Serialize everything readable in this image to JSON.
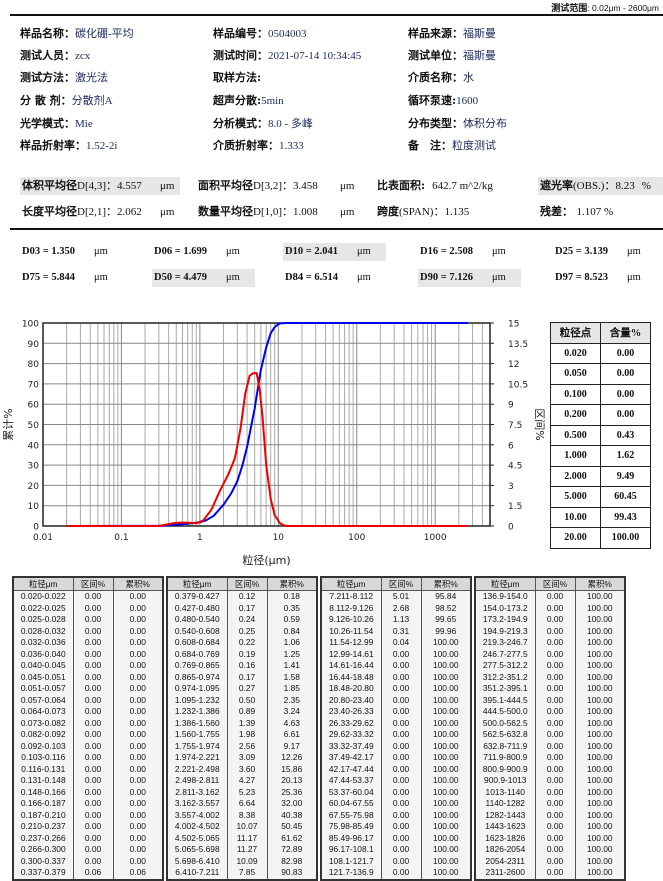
{
  "header": {
    "range_label": "测试范围",
    "range_value": ": 0.02μm - 2600μm"
  },
  "info": [
    {
      "key": "样品名称：",
      "value": "碳化硼-平均"
    },
    {
      "key": "样品编号：",
      "value": "0504003"
    },
    {
      "key": "样品来源：",
      "value": "福斯曼"
    },
    {
      "key": "测试人员：",
      "value": "zcx"
    },
    {
      "key": "测试时间：",
      "value": "2021-07-14  10:34:45"
    },
    {
      "key": "测试单位：",
      "value": "福斯曼"
    },
    {
      "key": "测试方法：",
      "value": "激光法"
    },
    {
      "key": "取样方法:",
      "value": ""
    },
    {
      "key": "介质名称：",
      "value": "水"
    },
    {
      "key": "分 散 剂：",
      "value": "分散剂A"
    },
    {
      "key": "超声分散:",
      "value": "5min"
    },
    {
      "key": "循环泵速:",
      "value": "1600"
    },
    {
      "key": "光学模式：",
      "value": "Mie"
    },
    {
      "key": "分析模式：",
      "value": "8.0 - 多峰"
    },
    {
      "key": "分布类型：",
      "value": "体积分布"
    },
    {
      "key": "样品折射率：",
      "value": "1.52-2i"
    },
    {
      "key": "介质折射率：",
      "value": "1.333"
    },
    {
      "key": "备　注：",
      "value": "粒度测试"
    }
  ],
  "stats": {
    "d43": {
      "key": "体积平均径",
      "sub": "D[4,3]：",
      "value": "4.557",
      "unit": "μm"
    },
    "d32": {
      "key": "面积平均径",
      "sub": "D[3,2]：",
      "value": "3.458",
      "unit": "μm"
    },
    "ssa": {
      "key": "比表面积:",
      "value": "642.7 m^2/kg"
    },
    "obs": {
      "key": "遮光率",
      "sub": "(OBS.)：",
      "value": "8.23",
      "unit": "%"
    },
    "d21": {
      "key": "长度平均径",
      "sub": "D[2,1]：",
      "value": "2.062",
      "unit": "μm"
    },
    "d10m": {
      "key": "数量平均径",
      "sub": "D[1,0]：",
      "value": "1.008",
      "unit": "μm"
    },
    "span": {
      "key": "跨度",
      "sub": "(SPAN)：",
      "value": "1.135"
    },
    "residual": {
      "key": "残差：",
      "value": "1.107 %"
    }
  },
  "dvalues": [
    {
      "label": "D03 = 1.350",
      "unit": "μm",
      "hl": false
    },
    {
      "label": "D06 = 1.699",
      "unit": "μm",
      "hl": false
    },
    {
      "label": "D10 = 2.041",
      "unit": "μm",
      "hl": true
    },
    {
      "label": "D16 = 2.508",
      "unit": "μm",
      "hl": false
    },
    {
      "label": "D25 = 3.139",
      "unit": "μm",
      "hl": false
    },
    {
      "label": "D75 = 5.844",
      "unit": "μm",
      "hl": false
    },
    {
      "label": "D50 = 4.479",
      "unit": "μm",
      "hl": true
    },
    {
      "label": "D84 = 6.514",
      "unit": "μm",
      "hl": false
    },
    {
      "label": "D90 = 7.126",
      "unit": "μm",
      "hl": true
    },
    {
      "label": "D97 = 8.523",
      "unit": "μm",
      "hl": false
    }
  ],
  "point_table": {
    "headers": [
      "粒径点",
      "含量%"
    ],
    "rows": [
      [
        "0.020",
        "0.00"
      ],
      [
        "0.050",
        "0.00"
      ],
      [
        "0.100",
        "0.00"
      ],
      [
        "0.200",
        "0.00"
      ],
      [
        "0.500",
        "0.43"
      ],
      [
        "1.000",
        "1.62"
      ],
      [
        "2.000",
        "9.49"
      ],
      [
        "5.000",
        "60.45"
      ],
      [
        "10.00",
        "99.43"
      ],
      [
        "20.00",
        "100.00"
      ]
    ]
  },
  "chart_data": {
    "type": "line",
    "xlabel": "粒径(μm)",
    "ylabel": "累计%",
    "y2label": "区间%",
    "xscale": "log",
    "xlim": [
      0.01,
      5000
    ],
    "ylim": [
      0,
      100
    ],
    "y2lim": [
      0,
      15
    ],
    "xticks": [
      "0.01",
      "0.1",
      "1",
      "10",
      "100",
      "1000"
    ],
    "yticks": [
      "0",
      "10",
      "20",
      "30",
      "40",
      "50",
      "60",
      "70",
      "80",
      "90",
      "100"
    ],
    "y2ticks": [
      "0",
      "1.5",
      "3",
      "4.5",
      "6",
      "7.5",
      "9",
      "10.5",
      "12",
      "13.5",
      "15"
    ],
    "grid": true,
    "series": [
      {
        "name": "累计%",
        "color": "#0000ee",
        "axis": "left",
        "x": [
          0.02,
          0.3,
          0.5,
          0.7,
          1.0,
          1.2,
          1.5,
          2.0,
          2.5,
          3.0,
          3.5,
          4.0,
          4.5,
          5.0,
          5.5,
          6.0,
          7.0,
          8.0,
          9.0,
          10.0,
          11.0,
          13.0,
          20,
          2600
        ],
        "y": [
          0,
          0.05,
          0.6,
          1.1,
          1.8,
          2.8,
          5.0,
          10.5,
          16,
          22,
          30,
          39,
          49,
          58,
          68,
          77,
          88,
          95,
          98,
          99.5,
          99.9,
          100,
          100,
          100
        ]
      },
      {
        "name": "区间%",
        "color": "#ee0000",
        "axis": "right",
        "x": [
          0.02,
          0.3,
          0.45,
          0.55,
          0.7,
          0.9,
          1.1,
          1.4,
          1.8,
          2.3,
          2.8,
          3.3,
          3.8,
          4.3,
          4.8,
          5.3,
          5.8,
          6.3,
          7.0,
          8.0,
          9.0,
          10.5,
          12.0,
          13.5,
          20,
          2600
        ],
        "y": [
          0,
          0,
          0.2,
          0.25,
          0.25,
          0.2,
          0.4,
          1.2,
          2.6,
          3.8,
          5.0,
          7.2,
          9.8,
          11.1,
          11.3,
          11.3,
          10.0,
          8.0,
          4.5,
          2.0,
          0.8,
          0.2,
          0.03,
          0,
          0,
          0
        ]
      }
    ]
  },
  "dist_table": {
    "headers": [
      "粒径μm",
      "区间%",
      "累积%"
    ],
    "columns": [
      [
        [
          "0.020-0.022",
          "0.00",
          "0.00"
        ],
        [
          "0.022-0.025",
          "0.00",
          "0.00"
        ],
        [
          "0.025-0.028",
          "0.00",
          "0.00"
        ],
        [
          "0.028-0.032",
          "0.00",
          "0.00"
        ],
        [
          "0.032-0.036",
          "0.00",
          "0.00"
        ],
        [
          "0.036-0.040",
          "0.00",
          "0.00"
        ],
        [
          "0.040-0.045",
          "0.00",
          "0.00"
        ],
        [
          "0.045-0.051",
          "0.00",
          "0.00"
        ],
        [
          "0.051-0.057",
          "0.00",
          "0.00"
        ],
        [
          "0.057-0.064",
          "0.00",
          "0.00"
        ],
        [
          "0.064-0.073",
          "0.00",
          "0.00"
        ],
        [
          "0.073-0.082",
          "0.00",
          "0.00"
        ],
        [
          "0.082-0.092",
          "0.00",
          "0.00"
        ],
        [
          "0.092-0.103",
          "0.00",
          "0.00"
        ],
        [
          "0.103-0.116",
          "0.00",
          "0.00"
        ],
        [
          "0.116-0.131",
          "0.00",
          "0.00"
        ],
        [
          "0.131-0.148",
          "0.00",
          "0.00"
        ],
        [
          "0.148-0.166",
          "0.00",
          "0.00"
        ],
        [
          "0.166-0.187",
          "0.00",
          "0.00"
        ],
        [
          "0.187-0.210",
          "0.00",
          "0.00"
        ],
        [
          "0.210-0.237",
          "0.00",
          "0.00"
        ],
        [
          "0.237-0.266",
          "0.00",
          "0.00"
        ],
        [
          "0.266-0.300",
          "0.00",
          "0.00"
        ],
        [
          "0.300-0.337",
          "0.00",
          "0.00"
        ],
        [
          "0.337-0.379",
          "0.06",
          "0.06"
        ]
      ],
      [
        [
          "0.379-0.427",
          "0.12",
          "0.18"
        ],
        [
          "0.427-0.480",
          "0.17",
          "0.35"
        ],
        [
          "0.480-0.540",
          "0.24",
          "0.59"
        ],
        [
          "0.540-0.608",
          "0.25",
          "0.84"
        ],
        [
          "0.608-0.684",
          "0.22",
          "1.06"
        ],
        [
          "0.684-0.769",
          "0.19",
          "1.25"
        ],
        [
          "0.769-0.865",
          "0.16",
          "1.41"
        ],
        [
          "0.865-0.974",
          "0.17",
          "1.58"
        ],
        [
          "0.974-1.095",
          "0.27",
          "1.85"
        ],
        [
          "1.095-1.232",
          "0.50",
          "2.35"
        ],
        [
          "1.232-1.386",
          "0.89",
          "3.24"
        ],
        [
          "1.386-1.560",
          "1.39",
          "4.63"
        ],
        [
          "1.560-1.755",
          "1.98",
          "6.61"
        ],
        [
          "1.755-1.974",
          "2.56",
          "9.17"
        ],
        [
          "1.974-2.221",
          "3.09",
          "12.26"
        ],
        [
          "2.221-2.498",
          "3.60",
          "15.86"
        ],
        [
          "2.498-2.811",
          "4.27",
          "20.13"
        ],
        [
          "2.811-3.162",
          "5.23",
          "25.36"
        ],
        [
          "3.162-3.557",
          "6.64",
          "32.00"
        ],
        [
          "3.557-4.002",
          "8.38",
          "40.38"
        ],
        [
          "4.002-4.502",
          "10.07",
          "50.45"
        ],
        [
          "4.502-5.065",
          "11.17",
          "61.62"
        ],
        [
          "5.065-5.698",
          "11.27",
          "72.89"
        ],
        [
          "5.698-6.410",
          "10.09",
          "82.98"
        ],
        [
          "6.410-7.211",
          "7.85",
          "90.83"
        ]
      ],
      [
        [
          "7.211-8.112",
          "5.01",
          "95.84"
        ],
        [
          "8.112-9.126",
          "2.68",
          "98.52"
        ],
        [
          "9.126-10.26",
          "1.13",
          "99.65"
        ],
        [
          "10.26-11.54",
          "0.31",
          "99.96"
        ],
        [
          "11.54-12.99",
          "0.04",
          "100.00"
        ],
        [
          "12.99-14.61",
          "0.00",
          "100.00"
        ],
        [
          "14.61-16.44",
          "0.00",
          "100.00"
        ],
        [
          "16.44-18.48",
          "0.00",
          "100.00"
        ],
        [
          "18.48-20.80",
          "0.00",
          "100.00"
        ],
        [
          "20.80-23.40",
          "0.00",
          "100.00"
        ],
        [
          "23.40-26.33",
          "0.00",
          "100.00"
        ],
        [
          "26.33-29.62",
          "0.00",
          "100.00"
        ],
        [
          "29.62-33.32",
          "0.00",
          "100.00"
        ],
        [
          "33.32-37.49",
          "0.00",
          "100.00"
        ],
        [
          "37.49-42.17",
          "0.00",
          "100.00"
        ],
        [
          "42.17-47.44",
          "0.00",
          "100.00"
        ],
        [
          "47.44-53.37",
          "0.00",
          "100.00"
        ],
        [
          "53.37-60.04",
          "0.00",
          "100.00"
        ],
        [
          "60.04-67.55",
          "0.00",
          "100.00"
        ],
        [
          "67.55-75.98",
          "0.00",
          "100.00"
        ],
        [
          "75.98-85.49",
          "0.00",
          "100.00"
        ],
        [
          "85.49-96.17",
          "0.00",
          "100.00"
        ],
        [
          "96.17-108.1",
          "0.00",
          "100.00"
        ],
        [
          "108.1-121.7",
          "0.00",
          "100.00"
        ],
        [
          "121.7-136.9",
          "0.00",
          "100.00"
        ]
      ],
      [
        [
          "136.9-154.0",
          "0.00",
          "100.00"
        ],
        [
          "154.0-173.2",
          "0.00",
          "100.00"
        ],
        [
          "173.2-194.9",
          "0.00",
          "100.00"
        ],
        [
          "194.9-219.3",
          "0.00",
          "100.00"
        ],
        [
          "219.3-246.7",
          "0.00",
          "100.00"
        ],
        [
          "246.7-277.5",
          "0.00",
          "100.00"
        ],
        [
          "277.5-312.2",
          "0.00",
          "100.00"
        ],
        [
          "312.2-351.2",
          "0.00",
          "100.00"
        ],
        [
          "351.2-395.1",
          "0.00",
          "100.00"
        ],
        [
          "395.1-444.5",
          "0.00",
          "100.00"
        ],
        [
          "444.5-500.0",
          "0.00",
          "100.00"
        ],
        [
          "500.0-562.5",
          "0.00",
          "100.00"
        ],
        [
          "562.5-632.8",
          "0.00",
          "100.00"
        ],
        [
          "632.8-711.9",
          "0.00",
          "100.00"
        ],
        [
          "711.9-800.9",
          "0.00",
          "100.00"
        ],
        [
          "800.9-900.9",
          "0.00",
          "100.00"
        ],
        [
          "900.9-1013",
          "0.00",
          "100.00"
        ],
        [
          "1013-1140",
          "0.00",
          "100.00"
        ],
        [
          "1140-1282",
          "0.00",
          "100.00"
        ],
        [
          "1282-1443",
          "0.00",
          "100.00"
        ],
        [
          "1443-1623",
          "0.00",
          "100.00"
        ],
        [
          "1623-1826",
          "0.00",
          "100.00"
        ],
        [
          "1826-2054",
          "0.00",
          "100.00"
        ],
        [
          "2054-2311",
          "0.00",
          "100.00"
        ],
        [
          "2311-2600",
          "0.00",
          "100.00"
        ]
      ]
    ]
  }
}
